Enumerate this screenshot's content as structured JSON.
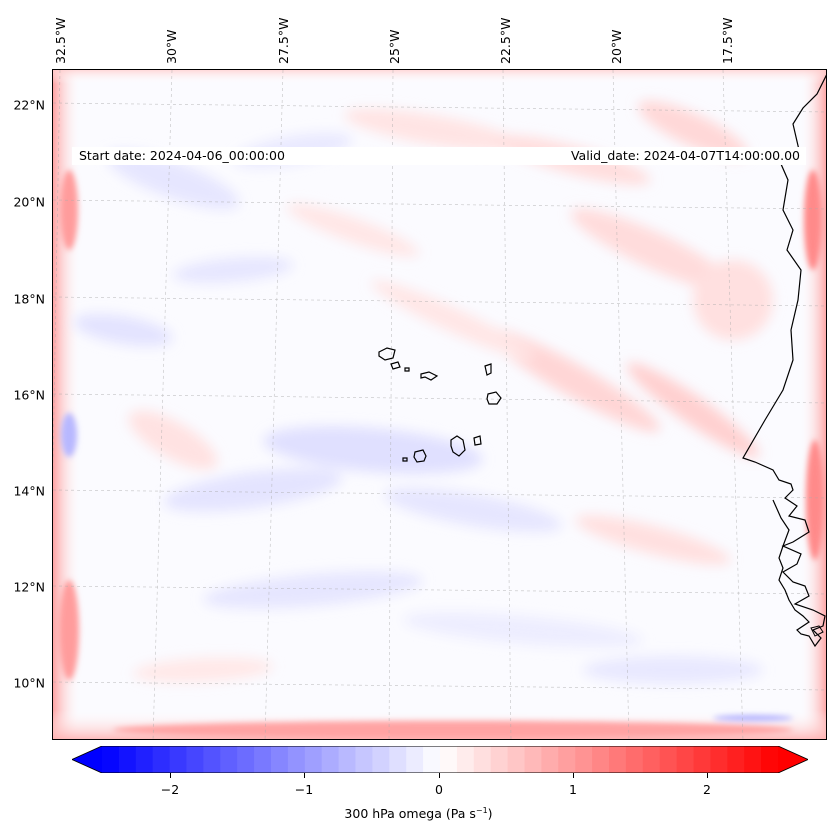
{
  "map": {
    "start_date": "Start date: 2024-04-06_00:00:00",
    "valid_date": "Valid_date: 2024-04-07T14:00:00.00",
    "lat_labels": [
      "22°N",
      "20°N",
      "18°N",
      "16°N",
      "14°N",
      "12°N",
      "10°N"
    ],
    "lon_labels": [
      "32.5°W",
      "30°W",
      "27.5°W",
      "25°W",
      "22.5°W",
      "20°W",
      "17.5°W"
    ],
    "gridlines": true,
    "islands_region": "Cabo Verde",
    "coastline_region": "West Africa"
  },
  "colorbar": {
    "label": "300 hPa omega (Pa s",
    "label_sup": "−1",
    "label_end": ")",
    "ticks": [
      "−2",
      "−1",
      "0",
      "1",
      "2"
    ],
    "range": [
      -2.7,
      2.7
    ],
    "cmap": "bwr",
    "colors": {
      "negative": "#0000ff",
      "zero": "#ffffff",
      "positive": "#ff0000"
    }
  },
  "chart_data": {
    "type": "heatmap",
    "title": "",
    "xlabel": "",
    "ylabel": "",
    "variable": "300 hPa omega",
    "units": "Pa s^-1",
    "x_ticks": [
      "32.5°W",
      "30°W",
      "27.5°W",
      "25°W",
      "22.5°W",
      "20°W",
      "17.5°W"
    ],
    "y_ticks": [
      "22°N",
      "20°N",
      "18°N",
      "16°N",
      "14°N",
      "12°N",
      "10°N"
    ],
    "colorbar_ticks": [
      -2,
      -1,
      0,
      1,
      2
    ],
    "colorbar_range": [
      -2.7,
      2.7
    ],
    "field_range_approx": [
      -0.6,
      0.9
    ]
  }
}
